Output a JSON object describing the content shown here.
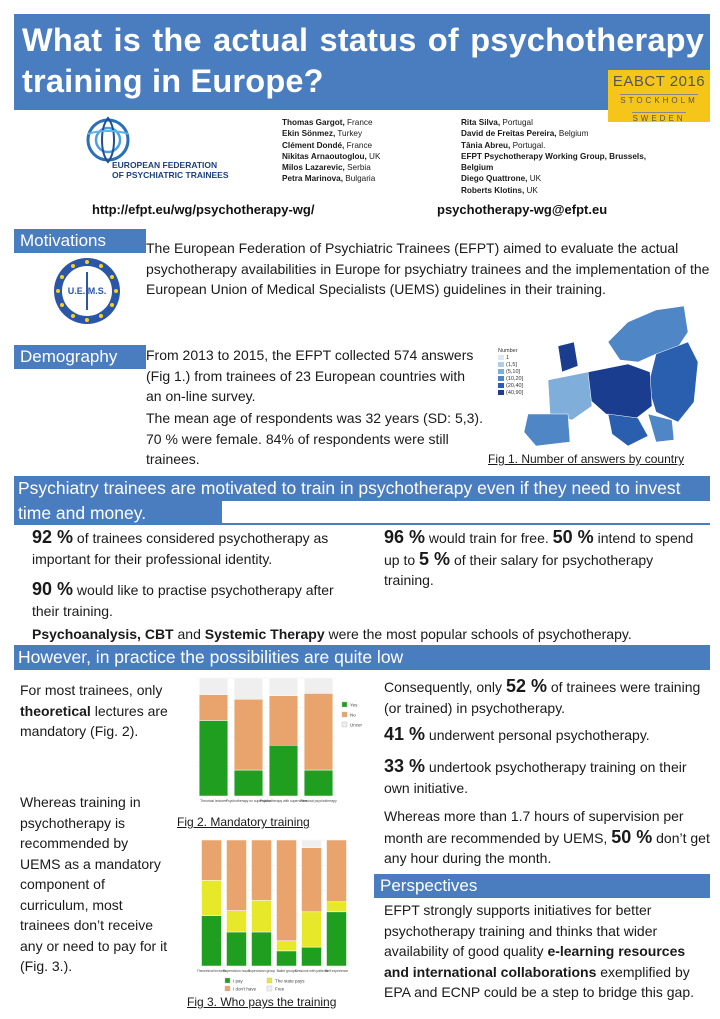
{
  "title": "What is the actual status of psychotherapy training in Europe?",
  "conference": {
    "name": "EABCT 2016",
    "city": "STOCKHOLM",
    "country": "SWEDEN"
  },
  "logo": {
    "line1": "EUROPEAN FEDERATION",
    "line2": "OF PSYCHIATRIC TRAINEES"
  },
  "authors_left": [
    {
      "name": "Thomas Gargot,",
      "country": " France"
    },
    {
      "name": "Ekin Sönmez,",
      "country": " Turkey"
    },
    {
      "name": "Clément Dondé,",
      "country": " France"
    },
    {
      "name": "Nikitas Arnaoutoglou,",
      "country": " UK"
    },
    {
      "name": "Milos Lazarevic,",
      "country": " Serbia"
    },
    {
      "name": "Petra Marinova,",
      "country": " Bulgaria"
    }
  ],
  "authors_right": [
    {
      "name": "Rita Silva,",
      "country": " Portugal"
    },
    {
      "name": "David de Freitas Pereira,",
      "country": " Belgium"
    },
    {
      "name": "Tânia Abreu,",
      "country": " Portugal."
    },
    {
      "name": "EFPT Psychotherapy Working Group, Brussels,",
      "country": ""
    },
    {
      "name": "Belgium",
      "country": ""
    },
    {
      "name": "Diego Quattrone,",
      "country": " UK"
    },
    {
      "name": "Roberts Klotins,",
      "country": " UK"
    }
  ],
  "url": "http://efpt.eu/wg/psychotherapy-wg/",
  "email": "psychotherapy-wg@efpt.eu",
  "motivations": {
    "heading": "Motivations",
    "uems_logo": "U.E. M.S.",
    "text": "The European Federation of Psychiatric Trainees (EFPT) aimed to evaluate the actual psychotherapy availabilities in Europe for psychiatry trainees and the implementation of the European Union of Medical Specialists  (UEMS) guidelines in their training."
  },
  "demography": {
    "heading": "Demography",
    "p1": "From 2013 to 2015, the EFPT collected 574 answers (Fig 1.) from trainees of 23 European countries with an on-line survey.",
    "p2": "The mean age of respondents was 32 years (SD: 5,3). 70 % were female. 84% of respondents were still trainees.",
    "map_legend_title": "Number",
    "map_legend": [
      "1",
      "(1,5]",
      "(5,10]",
      "(10,20]",
      "(20,40]",
      "(40,90]"
    ],
    "map_colors": [
      "#dce8f5",
      "#b3cde8",
      "#7faedb",
      "#4f86c6",
      "#2a5fb0",
      "#1a3d8f"
    ],
    "caption": "Fig 1. Number of answers by country"
  },
  "banner1": "Psychiatry trainees are motivated to train in psychotherapy even if they need to invest time and money.",
  "motivation_stats": {
    "s1_pct": "92 %",
    "s1_text": " of trainees considered psychotherapy as important for their professional identity.",
    "s2_pct": "90 %",
    "s2_text": " would like to practise psychotherapy after their training.",
    "s3_pct": "96 %",
    "s3_text": " would train for free. ",
    "s3b_pct": "50 %",
    "s3b_text": " intend to spend up to ",
    "s3c_pct": "5 %",
    "s3c_text": " of their salary for psychotherapy training.",
    "schools": {
      "a": "Psychoanalysis, CBT",
      "and1": " and ",
      "b": "Systemic Therapy",
      "rest": " were the most popular schools of psychotherapy."
    }
  },
  "banner2": "However, in practice the possibilities are quite low",
  "left_col": {
    "p1a": "For most trainees, only ",
    "p1b": "theoretical",
    "p1c": " lectures are mandatory (Fig. 2).",
    "p2": "Whereas training in psychotherapy is recommended by UEMS as a mandatory component of curriculum, most trainees don’t receive any or need to pay for it (Fig. 3.)."
  },
  "fig2": {
    "caption": "Fig 2. Mandatory training",
    "chart_data": {
      "type": "bar",
      "stacked": true,
      "categories": [
        "Theorical lectures",
        "Psychotherapy no supervision",
        "Psychotherapy with supervision",
        "Personal psychotherapy"
      ],
      "series": [
        {
          "name": "Yes",
          "color": "#1f9e1f",
          "values": [
            0.64,
            0.22,
            0.43,
            0.22
          ]
        },
        {
          "name": "No",
          "color": "#e8a46c",
          "values": [
            0.22,
            0.6,
            0.42,
            0.65
          ]
        },
        {
          "name": "Uncertain",
          "color": "#efefef",
          "values": [
            0.14,
            0.18,
            0.15,
            0.13
          ]
        }
      ],
      "ylim": [
        0,
        1
      ]
    }
  },
  "fig3": {
    "caption": "Fig 3. Who pays the training",
    "chart_data": {
      "type": "bar",
      "stacked": true,
      "categories": [
        "Theoretical lectures",
        "Supervision hours",
        "Supervision group",
        "Balint groups",
        "Sessions with patients",
        "Self experience"
      ],
      "series": [
        {
          "name": "I pay",
          "color": "#1f9e1f",
          "values": [
            0.4,
            0.27,
            0.27,
            0.12,
            0.15,
            0.43
          ]
        },
        {
          "name": "The state pays",
          "color": "#e8e82a",
          "values": [
            0.28,
            0.17,
            0.25,
            0.08,
            0.28,
            0.08
          ]
        },
        {
          "name": "I don't have",
          "color": "#e8a46c",
          "values": [
            0.32,
            0.56,
            0.48,
            0.8,
            0.51,
            0.49
          ]
        },
        {
          "name": "Free",
          "color": "#efefef",
          "values": [
            0.0,
            0.0,
            0.0,
            0.0,
            0.06,
            0.0
          ]
        }
      ],
      "ylim": [
        0,
        1
      ]
    }
  },
  "right_col": {
    "r1a": "Consequently, only ",
    "r1b": "52 %",
    "r1c": " of trainees were training (or trained) in psychotherapy.",
    "r2b": "41 %",
    "r2c": " underwent personal psychotherapy.",
    "r3b": "33 %",
    "r3c": " undertook psychotherapy training on their own initiative.",
    "r4a": "Whereas more than 1.7 hours of supervision per month are recommended by UEMS, ",
    "r4b": "50 %",
    "r4c": " don’t get any hour during the month."
  },
  "perspectives": {
    "heading": "Perspectives",
    "a": "EFPT strongly supports initiatives for better psychotherapy training and thinks that wider availability of good quality ",
    "b": "e-learning resources and international collaborations",
    "c": " exemplified by EPA and ECNP could be a step to bridge this gap."
  }
}
